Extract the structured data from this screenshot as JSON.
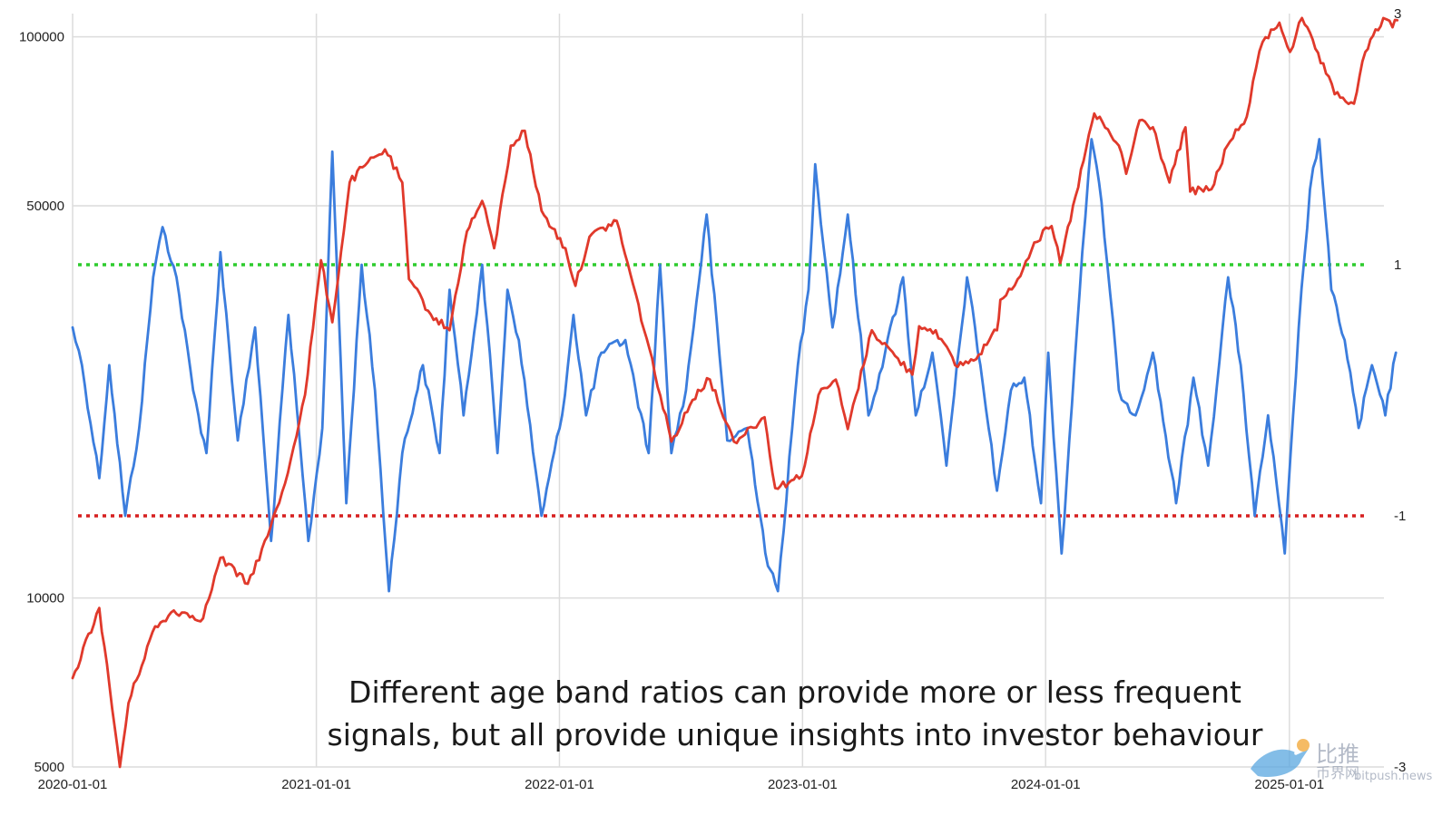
{
  "chart_data": {
    "type": "line",
    "title": "",
    "xlabel": "",
    "ylabel_left": "",
    "ylabel_right": "",
    "x_ticks": [
      "2020-01-01",
      "2021-01-01",
      "2022-01-01",
      "2023-01-01",
      "2024-01-01",
      "2025-01-01"
    ],
    "y_left": {
      "scale": "log",
      "range": [
        5000,
        110000
      ],
      "ticks": [
        5000,
        10000,
        50000,
        100000
      ]
    },
    "y_right": {
      "scale": "linear",
      "range": [
        -3,
        3
      ],
      "ticks": [
        3,
        1,
        -1,
        -3
      ]
    },
    "grid": true,
    "caption": [
      "Different age band ratios can provide more or less frequent",
      "signals, but all provide unique insights into investor behaviour"
    ],
    "reference_lines": [
      {
        "axis": "right",
        "value": 1,
        "color": "#2ecc2e",
        "style": "dotted"
      },
      {
        "axis": "right",
        "value": -1,
        "color": "#d62020",
        "style": "dotted"
      }
    ],
    "series": [
      {
        "axis": "left",
        "color": "#e0392b",
        "points": [
          [
            "2020-01-01",
            7200
          ],
          [
            "2020-02-10",
            9600
          ],
          [
            "2020-03-12",
            5000
          ],
          [
            "2020-03-25",
            6500
          ],
          [
            "2020-04-30",
            8700
          ],
          [
            "2020-06-01",
            9500
          ],
          [
            "2020-07-15",
            9200
          ],
          [
            "2020-08-10",
            11800
          ],
          [
            "2020-09-20",
            10600
          ],
          [
            "2020-10-20",
            12900
          ],
          [
            "2020-11-15",
            16000
          ],
          [
            "2020-12-15",
            23000
          ],
          [
            "2021-01-08",
            40000
          ],
          [
            "2021-01-25",
            31000
          ],
          [
            "2021-02-20",
            55000
          ],
          [
            "2021-03-15",
            59000
          ],
          [
            "2021-04-14",
            63000
          ],
          [
            "2021-05-10",
            55000
          ],
          [
            "2021-05-20",
            37000
          ],
          [
            "2021-06-22",
            32000
          ],
          [
            "2021-07-20",
            30000
          ],
          [
            "2021-08-15",
            45000
          ],
          [
            "2021-09-07",
            51000
          ],
          [
            "2021-09-25",
            42000
          ],
          [
            "2021-10-20",
            64000
          ],
          [
            "2021-11-10",
            68000
          ],
          [
            "2021-12-05",
            49000
          ],
          [
            "2022-01-10",
            42000
          ],
          [
            "2022-01-25",
            36000
          ],
          [
            "2022-02-15",
            44000
          ],
          [
            "2022-03-28",
            47000
          ],
          [
            "2022-05-12",
            29000
          ],
          [
            "2022-06-18",
            19000
          ],
          [
            "2022-07-28",
            23500
          ],
          [
            "2022-08-15",
            24500
          ],
          [
            "2022-09-20",
            19000
          ],
          [
            "2022-11-05",
            21000
          ],
          [
            "2022-11-21",
            15700
          ],
          [
            "2022-12-31",
            16500
          ],
          [
            "2023-01-25",
            23000
          ],
          [
            "2023-02-20",
            24500
          ],
          [
            "2023-03-10",
            20000
          ],
          [
            "2023-04-15",
            30000
          ],
          [
            "2023-05-20",
            27000
          ],
          [
            "2023-06-15",
            25000
          ],
          [
            "2023-06-25",
            30500
          ],
          [
            "2023-07-20",
            30000
          ],
          [
            "2023-08-18",
            26000
          ],
          [
            "2023-09-15",
            26500
          ],
          [
            "2023-10-20",
            30000
          ],
          [
            "2023-10-25",
            34000
          ],
          [
            "2023-11-20",
            37000
          ],
          [
            "2023-12-15",
            43000
          ],
          [
            "2024-01-10",
            46000
          ],
          [
            "2024-01-23",
            39500
          ],
          [
            "2024-02-15",
            52000
          ],
          [
            "2024-03-14",
            73000
          ],
          [
            "2024-04-20",
            64000
          ],
          [
            "2024-05-01",
            57000
          ],
          [
            "2024-05-21",
            71000
          ],
          [
            "2024-06-10",
            69000
          ],
          [
            "2024-07-05",
            55000
          ],
          [
            "2024-07-29",
            69000
          ],
          [
            "2024-08-05",
            53000
          ],
          [
            "2024-09-06",
            53500
          ],
          [
            "2024-09-30",
            64000
          ],
          [
            "2024-10-29",
            72000
          ],
          [
            "2024-11-12",
            88000
          ],
          [
            "2024-11-22",
            98000
          ],
          [
            "2024-12-17",
            106000
          ],
          [
            "2025-01-02",
            94000
          ],
          [
            "2025-01-20",
            108000
          ],
          [
            "2025-02-25",
            86000
          ],
          [
            "2025-03-10",
            79000
          ],
          [
            "2025-04-08",
            76000
          ],
          [
            "2025-04-25",
            94000
          ],
          [
            "2025-05-22",
            108000
          ],
          [
            "2025-06-05",
            104000
          ],
          [
            "2025-06-12",
            107000
          ]
        ]
      },
      {
        "axis": "right",
        "color": "#3b7ddd",
        "points": [
          [
            "2020-01-01",
            0.5
          ],
          [
            "2020-01-15",
            0.2
          ],
          [
            "2020-02-10",
            -0.7
          ],
          [
            "2020-02-25",
            0.2
          ],
          [
            "2020-03-20",
            -1.0
          ],
          [
            "2020-04-10",
            -0.3
          ],
          [
            "2020-05-01",
            0.9
          ],
          [
            "2020-05-15",
            1.3
          ],
          [
            "2020-06-05",
            0.9
          ],
          [
            "2020-06-30",
            0.0
          ],
          [
            "2020-07-20",
            -0.5
          ],
          [
            "2020-08-10",
            1.1
          ],
          [
            "2020-09-05",
            -0.4
          ],
          [
            "2020-10-01",
            0.5
          ],
          [
            "2020-10-25",
            -1.2
          ],
          [
            "2020-11-20",
            0.6
          ],
          [
            "2020-12-20",
            -1.2
          ],
          [
            "2021-01-10",
            -0.3
          ],
          [
            "2021-01-25",
            1.9
          ],
          [
            "2021-02-15",
            -0.9
          ],
          [
            "2021-03-10",
            1.0
          ],
          [
            "2021-03-30",
            0.0
          ],
          [
            "2021-04-20",
            -1.6
          ],
          [
            "2021-05-10",
            -0.5
          ],
          [
            "2021-06-10",
            0.2
          ],
          [
            "2021-07-05",
            -0.5
          ],
          [
            "2021-07-20",
            0.8
          ],
          [
            "2021-08-10",
            -0.2
          ],
          [
            "2021-09-07",
            1.0
          ],
          [
            "2021-09-30",
            -0.5
          ],
          [
            "2021-10-15",
            0.8
          ],
          [
            "2021-11-01",
            0.4
          ],
          [
            "2021-12-05",
            -1.0
          ],
          [
            "2022-01-05",
            -0.2
          ],
          [
            "2022-01-22",
            0.6
          ],
          [
            "2022-02-10",
            -0.2
          ],
          [
            "2022-03-05",
            0.3
          ],
          [
            "2022-04-10",
            0.4
          ],
          [
            "2022-05-15",
            -0.5
          ],
          [
            "2022-06-01",
            1.0
          ],
          [
            "2022-06-18",
            -0.5
          ],
          [
            "2022-07-10",
            0.0
          ],
          [
            "2022-08-10",
            1.4
          ],
          [
            "2022-09-10",
            -0.4
          ],
          [
            "2022-10-10",
            -0.3
          ],
          [
            "2022-11-10",
            -1.4
          ],
          [
            "2022-11-25",
            -1.6
          ],
          [
            "2022-12-25",
            0.2
          ],
          [
            "2023-01-10",
            0.8
          ],
          [
            "2023-01-20",
            1.8
          ],
          [
            "2023-02-15",
            0.5
          ],
          [
            "2023-03-10",
            1.4
          ],
          [
            "2023-04-10",
            -0.2
          ],
          [
            "2023-05-05",
            0.3
          ],
          [
            "2023-06-01",
            0.9
          ],
          [
            "2023-06-20",
            -0.2
          ],
          [
            "2023-07-15",
            0.3
          ],
          [
            "2023-08-05",
            -0.6
          ],
          [
            "2023-09-05",
            0.9
          ],
          [
            "2023-09-25",
            0.2
          ],
          [
            "2023-10-20",
            -0.8
          ],
          [
            "2023-11-10",
            0.0
          ],
          [
            "2023-11-30",
            0.1
          ],
          [
            "2023-12-25",
            -0.9
          ],
          [
            "2024-01-05",
            0.3
          ],
          [
            "2024-01-25",
            -1.3
          ],
          [
            "2024-02-25",
            1.1
          ],
          [
            "2024-03-10",
            2.0
          ],
          [
            "2024-03-25",
            1.5
          ],
          [
            "2024-04-20",
            0.0
          ],
          [
            "2024-05-15",
            -0.2
          ],
          [
            "2024-06-10",
            0.3
          ],
          [
            "2024-07-15",
            -0.9
          ],
          [
            "2024-08-10",
            0.1
          ],
          [
            "2024-09-01",
            -0.6
          ],
          [
            "2024-10-01",
            0.9
          ],
          [
            "2024-10-20",
            0.2
          ],
          [
            "2024-11-10",
            -1.0
          ],
          [
            "2024-11-30",
            -0.2
          ],
          [
            "2024-12-25",
            -1.3
          ],
          [
            "2025-01-15",
            0.5
          ],
          [
            "2025-02-01",
            1.6
          ],
          [
            "2025-02-15",
            2.0
          ],
          [
            "2025-03-05",
            0.8
          ],
          [
            "2025-03-25",
            0.4
          ],
          [
            "2025-04-15",
            -0.3
          ],
          [
            "2025-05-05",
            0.2
          ],
          [
            "2025-05-25",
            -0.2
          ],
          [
            "2025-06-10",
            0.3
          ]
        ]
      }
    ]
  },
  "watermark": {
    "line1": "比推",
    "line2": "币界网",
    "line3": "bitpush.news"
  }
}
